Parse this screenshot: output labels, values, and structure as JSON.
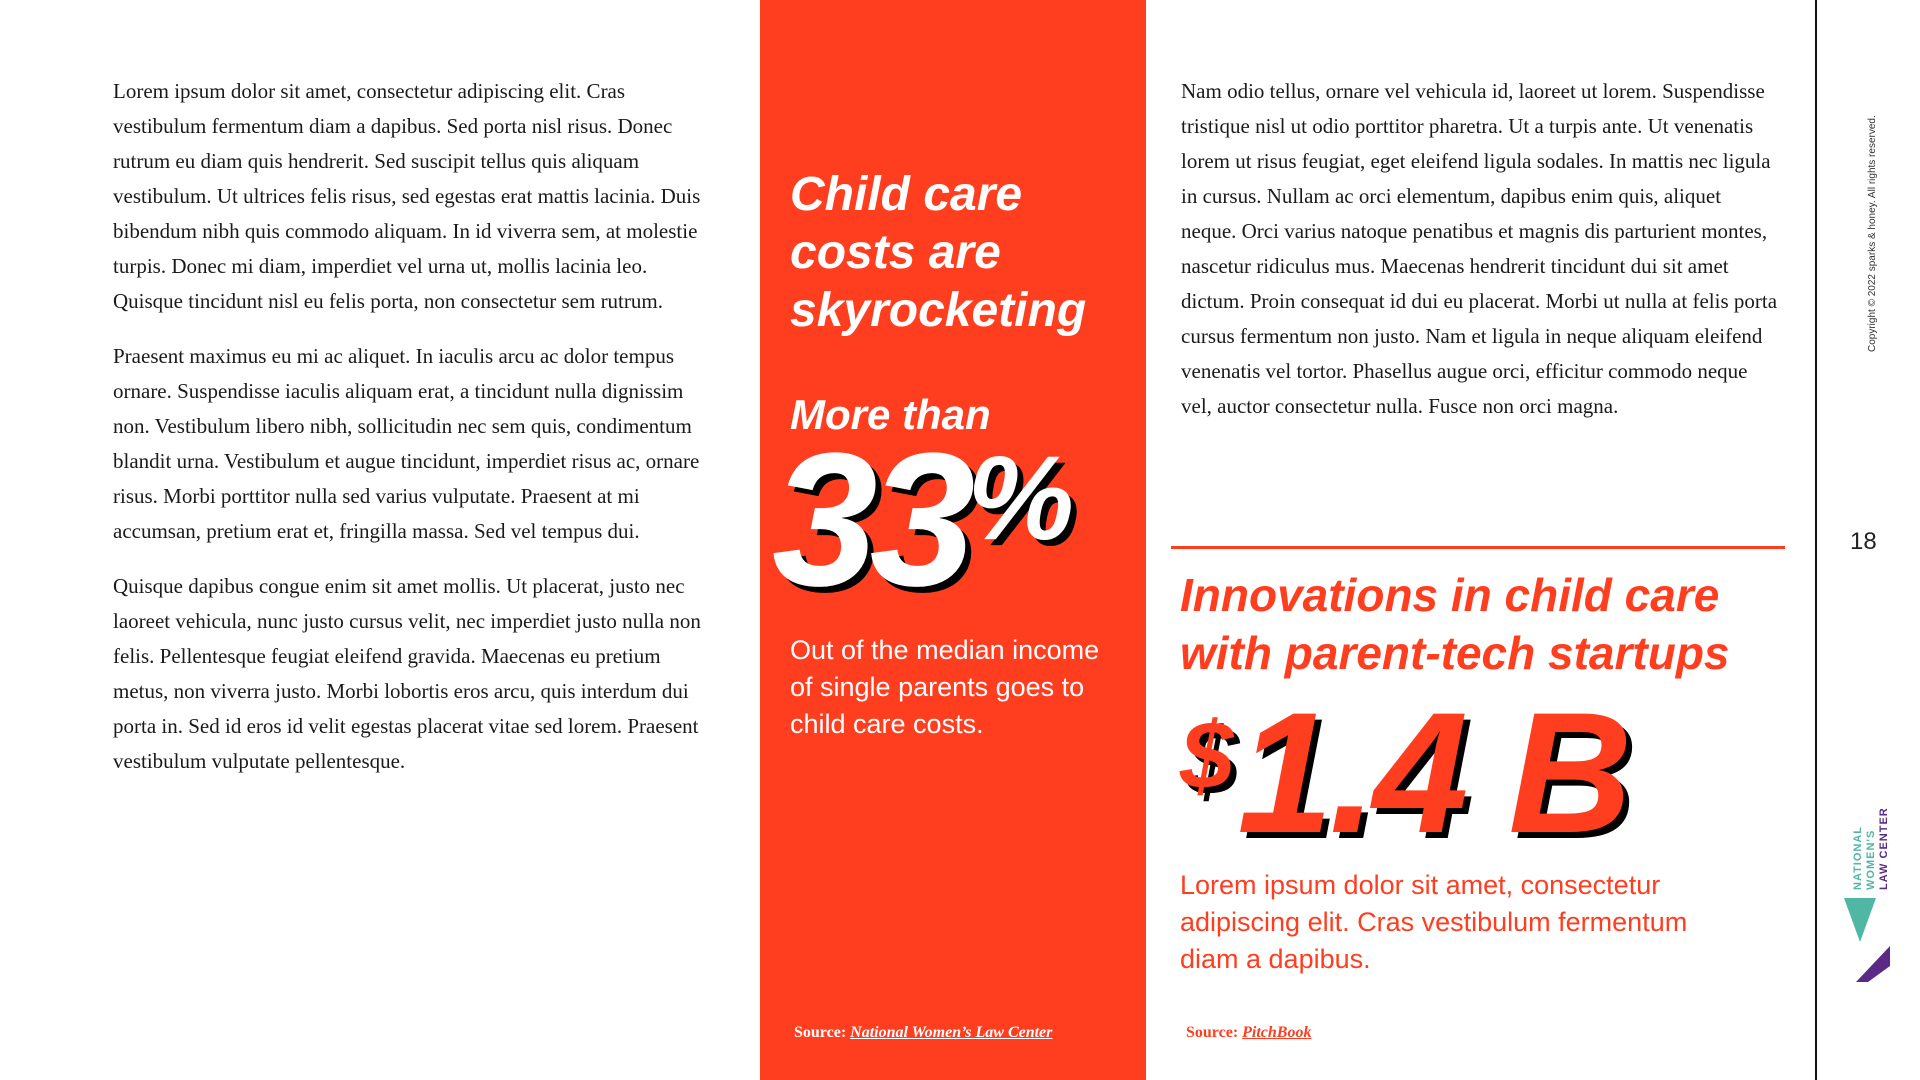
{
  "left_column": {
    "paragraphs": [
      "Lorem ipsum dolor sit amet, consectetur adipiscing elit. Cras vestibulum fermentum diam a dapibus. Sed porta nisl risus. Donec rutrum eu diam quis hendrerit. Sed suscipit tellus quis aliquam vestibulum. Ut ultrices felis risus, sed egestas erat mattis lacinia. Duis bibendum nibh quis commodo aliquam. In id viverra sem, at molestie turpis. Donec mi diam, imperdiet vel urna ut, mollis lacinia leo. Quisque tincidunt nisl eu felis porta, non consectetur sem rutrum.",
      "Praesent maximus eu mi ac aliquet. In iaculis arcu ac dolor tempus ornare. Suspendisse iaculis aliquam erat, a tincidunt nulla dignissim non. Vestibulum libero nibh, sollicitudin nec sem quis, condimentum blandit urna. Vestibulum et augue tincidunt, imperdiet risus ac, ornare risus. Morbi porttitor nulla sed varius vulputate. Praesent at mi accumsan, pretium erat et, fringilla massa. Sed vel tempus dui.",
      "Quisque dapibus congue enim sit amet mollis. Ut placerat, justo nec laoreet vehicula, nunc justo cursus velit, nec imperdiet justo nulla non felis. Pellentesque feugiat eleifend gravida. Maecenas eu pretium metus, non viverra justo. Morbi lobortis eros arcu, quis interdum dui porta in. Sed id eros id velit egestas placerat vitae sed lorem. Praesent vestibulum vulputate pellentesque."
    ]
  },
  "callout": {
    "headline": "Child care costs are skyrocketing",
    "lead": "More than",
    "stat_number": "33",
    "stat_unit": "%",
    "description": "Out of the median income of single parents goes to child care costs.",
    "source_label": "Source:",
    "source_link": "National Women’s Law Center"
  },
  "right_column": {
    "paragraph": "Nam odio tellus, ornare vel vehicula id, laoreet ut lorem. Suspendisse tristique nisl ut odio porttitor pharetra. Ut a turpis ante. Ut venenatis lorem ut risus feugiat, eget eleifend ligula sodales. In mattis nec ligula in cursus. Nullam ac orci elementum, dapibus enim quis, aliquet neque. Orci varius natoque penatibus et magnis dis parturient montes, nascetur ridiculus mus. Maecenas hendrerit tincidunt dui sit amet dictum. Proin consequat id dui eu placerat. Morbi ut nulla at felis porta cursus fermentum non justo. Nam et ligula in neque aliquam eleifend venenatis vel tortor. Phasellus augue orci, efficitur commodo neque vel, auctor consectetur nulla. Fusce non orci magna.",
    "headline": "Innovations in child care with parent-tech startups",
    "stat_currency": "$",
    "stat_value": "1.4 B",
    "description": "Lorem ipsum dolor sit amet, consectetur adipiscing elit. Cras vestibulum fermentum diam a dapibus.",
    "source_label": "Source:",
    "source_link": "PitchBook"
  },
  "sidebar": {
    "copyright": "Copyright © 2022 sparks & honey. All rights reserved.",
    "page_number": "18",
    "logo_lines": [
      "NATIONAL",
      "WOMEN'S",
      "LAW CENTER"
    ]
  },
  "colors": {
    "accent": "#ff3d1f",
    "logo_teal": "#4fb7a4",
    "logo_purple": "#5b2a86"
  },
  "icons": {
    "logo": "nwlc-logo-icon"
  }
}
